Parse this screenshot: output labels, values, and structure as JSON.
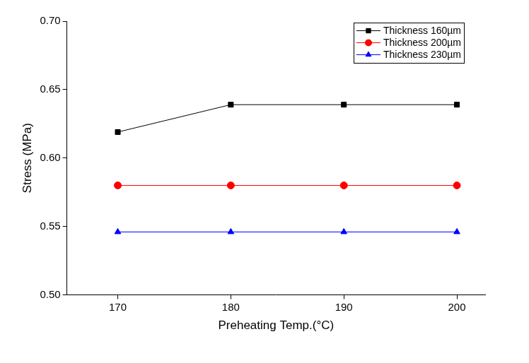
{
  "chart_data": {
    "type": "line",
    "x_label": "Preheating Temp.(°C)",
    "y_label": "Stress (MPa)",
    "x": [
      170,
      180,
      190,
      200
    ],
    "series": [
      {
        "name": "Thickness 160µm",
        "color": "#000000",
        "marker": "square",
        "values": [
          0.619,
          0.639,
          0.639,
          0.639
        ]
      },
      {
        "name": "Thickness 200µm",
        "color": "#ff0000",
        "marker": "circle",
        "values": [
          0.58,
          0.58,
          0.58,
          0.58
        ]
      },
      {
        "name": "Thickness 230µm",
        "color": "#0000ff",
        "marker": "triangle",
        "values": [
          0.546,
          0.546,
          0.546,
          0.546
        ]
      }
    ],
    "xlim": [
      165.5,
      202.5
    ],
    "xticks": [
      170,
      180,
      190,
      200
    ],
    "ylim": [
      0.5,
      0.7
    ],
    "yticks": [
      {
        "value": 0.5,
        "label": "0.50"
      },
      0.55,
      {
        "value": 0.6,
        "label": "0.60"
      },
      0.65,
      {
        "value": 0.7,
        "label": "0.70"
      }
    ],
    "grid": false,
    "legend": "upper right"
  }
}
